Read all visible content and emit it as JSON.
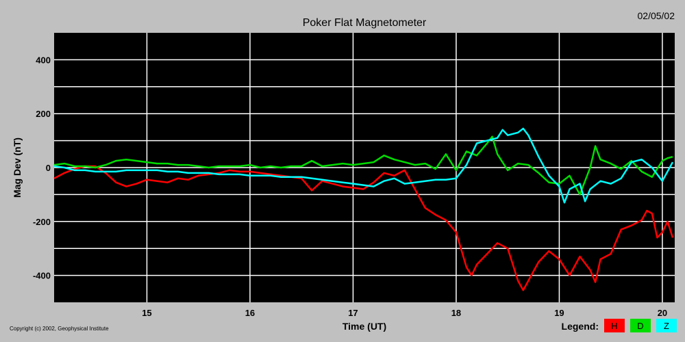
{
  "chart_data": {
    "type": "line",
    "title": "Poker Flat Magnetometer",
    "date": "02/05/02",
    "xlabel": "Time (UT)",
    "ylabel": "Mag Dev (nT)",
    "xlim": [
      14.1,
      20.12
    ],
    "ylim": [
      -500,
      500
    ],
    "xticks": [
      15,
      16,
      17,
      18,
      19,
      20
    ],
    "yticks": [
      400,
      200,
      0,
      -200,
      -400
    ],
    "grid": true,
    "background": "#000000",
    "legend_title": "Legend:",
    "legend_position": "bottom-right",
    "copyright": "Copyright (c) 2002, Geophysical Institute",
    "series": [
      {
        "name": "H",
        "color": "#ff0000",
        "x": [
          14.1,
          14.2,
          14.3,
          14.4,
          14.5,
          14.6,
          14.7,
          14.8,
          14.9,
          15.0,
          15.1,
          15.2,
          15.3,
          15.4,
          15.5,
          15.6,
          15.7,
          15.8,
          15.9,
          16.0,
          16.1,
          16.2,
          16.3,
          16.4,
          16.5,
          16.6,
          16.7,
          16.8,
          16.9,
          17.0,
          17.1,
          17.2,
          17.3,
          17.4,
          17.5,
          17.6,
          17.7,
          17.8,
          17.9,
          18.0,
          18.1,
          18.15,
          18.2,
          18.3,
          18.4,
          18.5,
          18.6,
          18.65,
          18.7,
          18.8,
          18.9,
          19.0,
          19.1,
          19.2,
          19.3,
          19.35,
          19.4,
          19.5,
          19.6,
          19.7,
          19.8,
          19.85,
          19.9,
          19.95,
          20.0,
          20.05,
          20.1
        ],
        "values": [
          -40,
          -20,
          -5,
          5,
          5,
          -20,
          -55,
          -70,
          -60,
          -45,
          -50,
          -55,
          -40,
          -45,
          -30,
          -25,
          -20,
          -10,
          -15,
          -15,
          -20,
          -25,
          -30,
          -35,
          -40,
          -85,
          -50,
          -60,
          -70,
          -75,
          -80,
          -55,
          -20,
          -30,
          -10,
          -80,
          -150,
          -175,
          -195,
          -240,
          -370,
          -400,
          -360,
          -320,
          -280,
          -300,
          -420,
          -455,
          -420,
          -350,
          -310,
          -340,
          -400,
          -330,
          -380,
          -425,
          -340,
          -320,
          -230,
          -215,
          -195,
          -160,
          -170,
          -260,
          -240,
          -200,
          -260
        ]
      },
      {
        "name": "D",
        "color": "#00dd00",
        "x": [
          14.1,
          14.2,
          14.3,
          14.4,
          14.5,
          14.6,
          14.7,
          14.8,
          14.9,
          15.0,
          15.1,
          15.2,
          15.3,
          15.4,
          15.5,
          15.6,
          15.7,
          15.8,
          15.9,
          16.0,
          16.1,
          16.2,
          16.3,
          16.4,
          16.5,
          16.6,
          16.7,
          16.8,
          16.9,
          17.0,
          17.1,
          17.2,
          17.3,
          17.4,
          17.5,
          17.6,
          17.7,
          17.8,
          17.9,
          18.0,
          18.1,
          18.2,
          18.3,
          18.35,
          18.4,
          18.5,
          18.6,
          18.7,
          18.8,
          18.9,
          19.0,
          19.1,
          19.2,
          19.3,
          19.35,
          19.4,
          19.5,
          19.6,
          19.7,
          19.8,
          19.9,
          20.0,
          20.05,
          20.1
        ],
        "values": [
          10,
          15,
          5,
          5,
          0,
          10,
          25,
          30,
          25,
          20,
          15,
          15,
          10,
          10,
          5,
          0,
          5,
          5,
          5,
          10,
          0,
          5,
          0,
          5,
          5,
          25,
          5,
          10,
          15,
          10,
          15,
          20,
          45,
          30,
          20,
          10,
          15,
          -5,
          50,
          -10,
          60,
          45,
          90,
          115,
          50,
          -10,
          15,
          10,
          -20,
          -55,
          -60,
          -30,
          -100,
          0,
          80,
          30,
          15,
          -5,
          25,
          -15,
          -35,
          25,
          35,
          40
        ]
      },
      {
        "name": "Z",
        "color": "#00ffff",
        "x": [
          14.1,
          14.2,
          14.3,
          14.4,
          14.5,
          14.6,
          14.7,
          14.8,
          14.9,
          15.0,
          15.1,
          15.2,
          15.3,
          15.4,
          15.5,
          15.6,
          15.7,
          15.8,
          15.9,
          16.0,
          16.1,
          16.2,
          16.3,
          16.4,
          16.5,
          16.6,
          16.7,
          16.8,
          16.9,
          17.0,
          17.1,
          17.2,
          17.3,
          17.4,
          17.5,
          17.6,
          17.7,
          17.8,
          17.9,
          18.0,
          18.1,
          18.2,
          18.3,
          18.4,
          18.45,
          18.5,
          18.6,
          18.65,
          18.7,
          18.8,
          18.9,
          19.0,
          19.05,
          19.1,
          19.2,
          19.25,
          19.3,
          19.4,
          19.5,
          19.6,
          19.7,
          19.8,
          19.9,
          20.0,
          20.1
        ],
        "values": [
          5,
          0,
          -10,
          -10,
          -15,
          -15,
          -15,
          -10,
          -10,
          -10,
          -10,
          -15,
          -15,
          -20,
          -20,
          -20,
          -25,
          -25,
          -25,
          -30,
          -30,
          -30,
          -35,
          -35,
          -35,
          -40,
          -45,
          -50,
          -55,
          -60,
          -65,
          -70,
          -50,
          -40,
          -60,
          -55,
          -50,
          -45,
          -45,
          -40,
          10,
          90,
          100,
          110,
          140,
          120,
          130,
          145,
          120,
          40,
          -30,
          -70,
          -130,
          -80,
          -60,
          -125,
          -80,
          -50,
          -60,
          -40,
          20,
          30,
          0,
          -50,
          20
        ]
      }
    ]
  }
}
